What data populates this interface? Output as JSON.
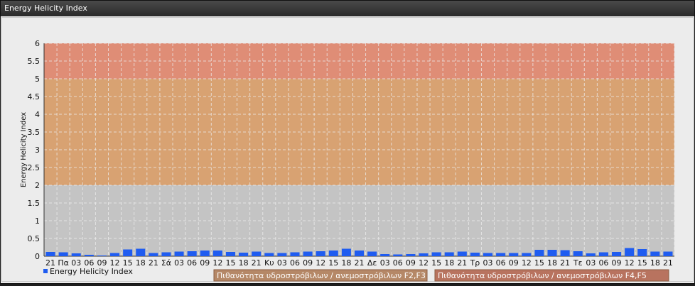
{
  "window": {
    "title": "Energy Helicity Index"
  },
  "chart_data": {
    "type": "bar",
    "ylabel": "Energy Helicity Index",
    "ylim": [
      0,
      6
    ],
    "yticks": [
      "0",
      "0.5",
      "1",
      "1.5",
      "2",
      "2.5",
      "3",
      "3.5",
      "4",
      "4.5",
      "5",
      "5.5",
      "6"
    ],
    "grid": true,
    "categories": [
      "21",
      "Πα",
      "03",
      "06",
      "09",
      "12",
      "15",
      "18",
      "21",
      "Σά",
      "03",
      "06",
      "09",
      "12",
      "15",
      "18",
      "21",
      "Κυ",
      "03",
      "06",
      "09",
      "12",
      "15",
      "18",
      "21",
      "Δε",
      "03",
      "06",
      "09",
      "12",
      "15",
      "18",
      "21",
      "Τρ",
      "03",
      "06",
      "09",
      "12",
      "15",
      "18",
      "21",
      "Τε",
      "03",
      "06",
      "09",
      "12",
      "15",
      "18",
      "21"
    ],
    "series": [
      {
        "name": "Energy Helicity Index",
        "color": "#1f5cf0",
        "values": [
          0.12,
          0.11,
          0.08,
          0.04,
          0.02,
          0.09,
          0.19,
          0.21,
          0.09,
          0.11,
          0.13,
          0.14,
          0.16,
          0.16,
          0.12,
          0.1,
          0.13,
          0.09,
          0.09,
          0.11,
          0.13,
          0.14,
          0.16,
          0.21,
          0.16,
          0.13,
          0.06,
          0.05,
          0.06,
          0.08,
          0.11,
          0.11,
          0.13,
          0.1,
          0.09,
          0.09,
          0.09,
          0.09,
          0.18,
          0.18,
          0.17,
          0.14,
          0.08,
          0.11,
          0.12,
          0.23,
          0.2,
          0.13,
          0.13
        ]
      }
    ],
    "bands": [
      {
        "from": 2,
        "to": 5,
        "color": "#d9a06e",
        "label": "Πιθανότητα υδροστρόβιλων / ανεμοστρόβιλων F2,F3"
      },
      {
        "from": 5,
        "to": 6,
        "color": "#e08a72",
        "label": "Πιθανότητα υδροστρόβιλων / ανεμοστρόβιλων F4,F5"
      }
    ],
    "legend_position": "bottom-left"
  }
}
